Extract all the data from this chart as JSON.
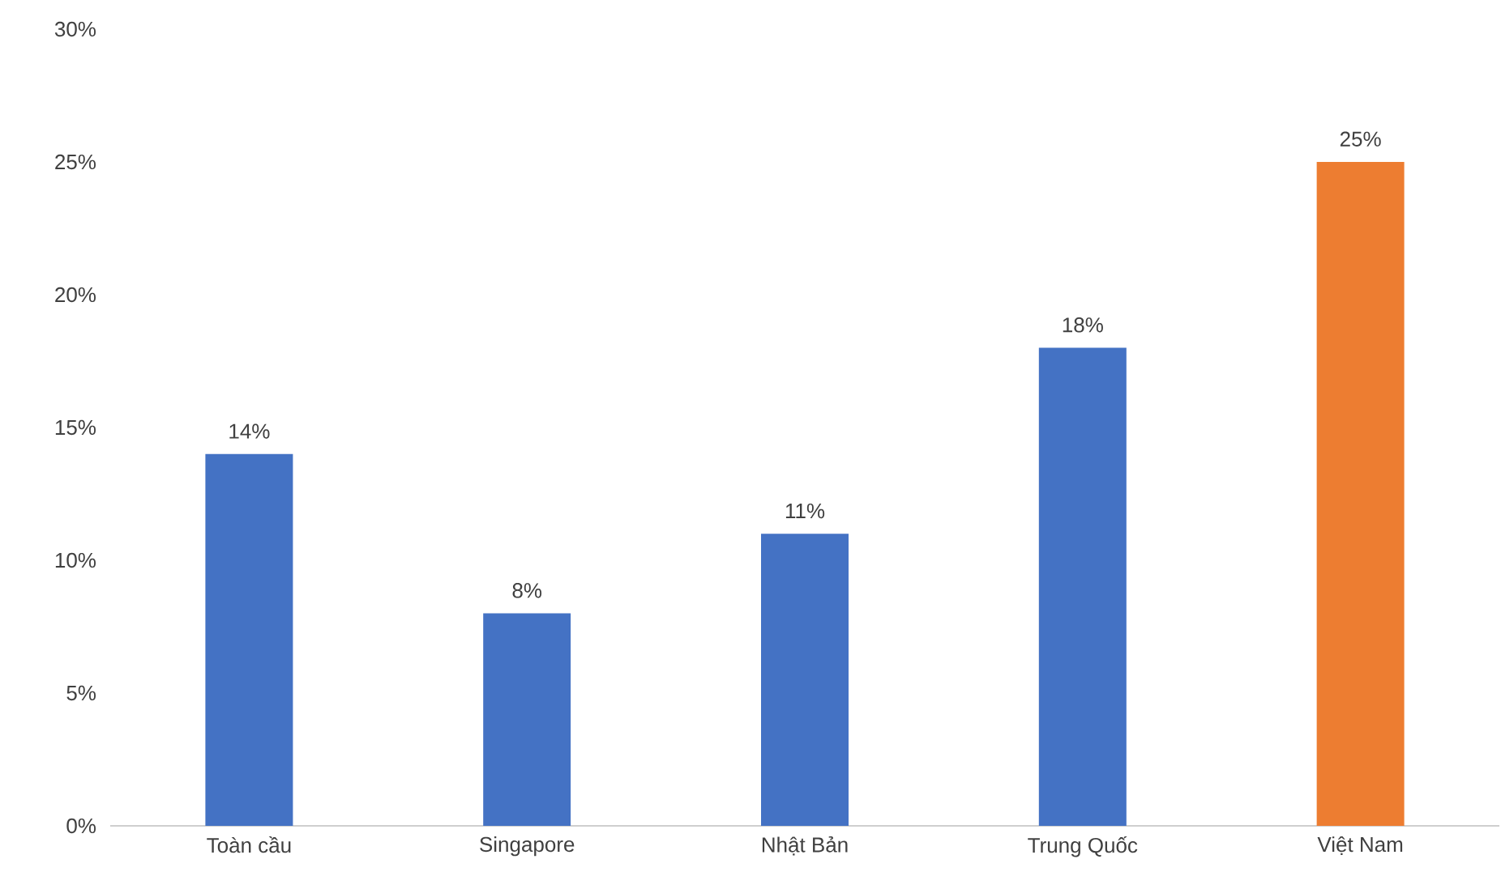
{
  "chart_data": {
    "type": "bar",
    "categories": [
      "Toàn cầu",
      "Singapore",
      "Nhật Bản",
      "Trung Quốc",
      "Việt Nam"
    ],
    "values": [
      14,
      8,
      11,
      18,
      25
    ],
    "colors": [
      "#4472c4",
      "#4472c4",
      "#4472c4",
      "#4472c4",
      "#ed7d31"
    ],
    "value_labels": [
      "14%",
      "8%",
      "11%",
      "18%",
      "25%"
    ],
    "ylim": [
      0,
      30
    ],
    "yticks": [
      {
        "value": 0,
        "label": "0%"
      },
      {
        "value": 5,
        "label": "5%"
      },
      {
        "value": 10,
        "label": "10%"
      },
      {
        "value": 15,
        "label": "15%"
      },
      {
        "value": 20,
        "label": "20%"
      },
      {
        "value": 25,
        "label": "25%"
      },
      {
        "value": 30,
        "label": "30%"
      }
    ],
    "grid": false
  }
}
